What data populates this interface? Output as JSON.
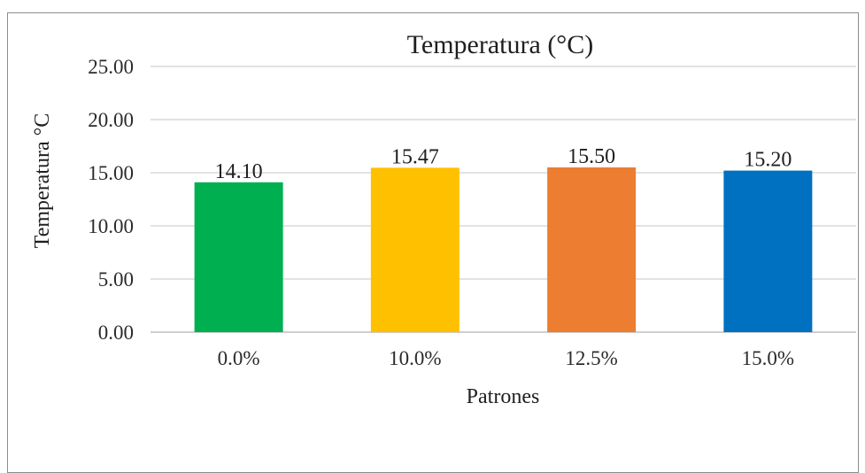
{
  "chart_data": {
    "type": "bar",
    "title": "Temperatura (°C)",
    "xlabel": "Patrones",
    "ylabel": "Temperatura °C",
    "categories": [
      "0.0%",
      "10.0%",
      "12.5%",
      "15.0%"
    ],
    "values": [
      14.1,
      15.47,
      15.5,
      15.2
    ],
    "data_labels": [
      "14.10",
      "15.47",
      "15.50",
      "15.20"
    ],
    "colors": [
      "#00b050",
      "#ffc000",
      "#ed7d31",
      "#0070c0"
    ],
    "ylim": [
      0,
      25
    ],
    "yticks": [
      0,
      5,
      10,
      15,
      20,
      25
    ],
    "ytick_labels": [
      "0.00",
      "5.00",
      "10.00",
      "15.00",
      "20.00",
      "25.00"
    ],
    "grid": true,
    "legend": false
  }
}
